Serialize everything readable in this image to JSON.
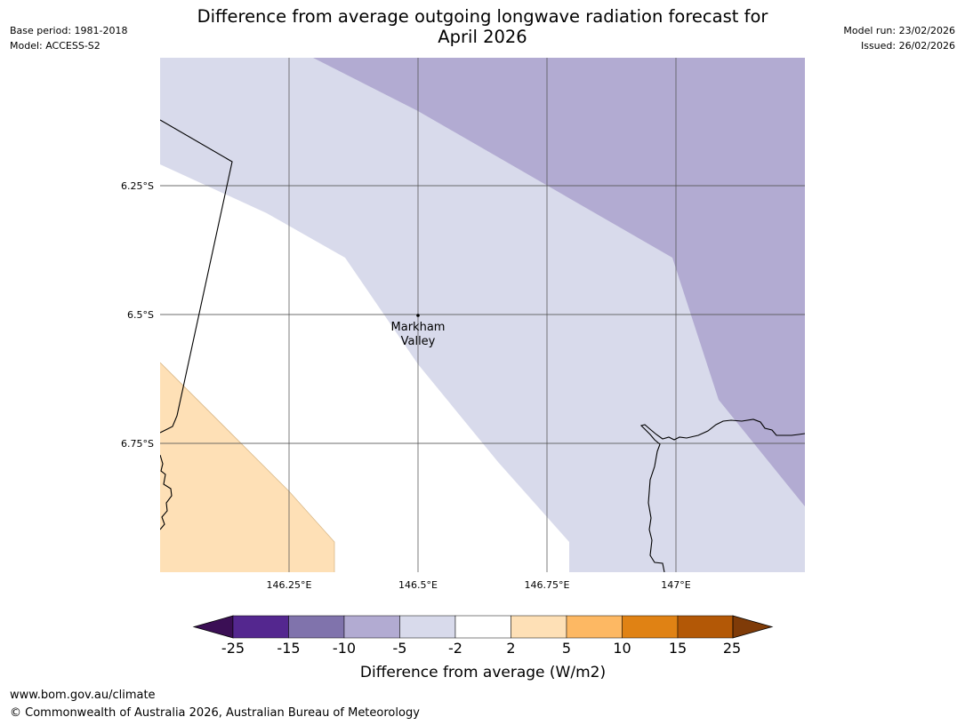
{
  "title": {
    "line1": "Difference from average outgoing longwave radiation forecast for",
    "line2": "April 2026"
  },
  "meta_left": {
    "base_period": "Base period: 1981-2018",
    "model": "Model: ACCESS-S2"
  },
  "meta_right": {
    "model_run": "Model run: 23/02/2026",
    "issued": "Issued: 26/02/2026"
  },
  "map": {
    "longitude_labels": [
      "146.25°E",
      "146.5°E",
      "146.75°E",
      "147°E"
    ],
    "latitude_labels": [
      "6.25°S",
      "6.5°S",
      "6.75°S"
    ],
    "place": {
      "name_line1": "Markham",
      "name_line2": "Valley"
    },
    "colors": {
      "land_outline": "#000000",
      "gridline": "#555555"
    }
  },
  "colorbar": {
    "title": "Difference from average (W/m2)",
    "tick_labels": [
      "-25",
      "-15",
      "-10",
      "-5",
      "-2",
      "2",
      "5",
      "10",
      "15",
      "25"
    ],
    "colors": {
      "below_min": "#3b0f55",
      "-25_-15": "#54278f",
      "-15_-10": "#8073ac",
      "-10_-5": "#b2abd2",
      "-5_-2": "#d8daeb",
      "-2_2": "#ffffff",
      "2_5": "#fee0b6",
      "5_10": "#fdb863",
      "10_15": "#e08214",
      "15_25": "#b35806",
      "above_max": "#7f3b08"
    }
  },
  "footer": {
    "url": "www.bom.gov.au/climate",
    "copyright": "© Commonwealth of Australia 2026, Australian Bureau of Meteorology"
  }
}
